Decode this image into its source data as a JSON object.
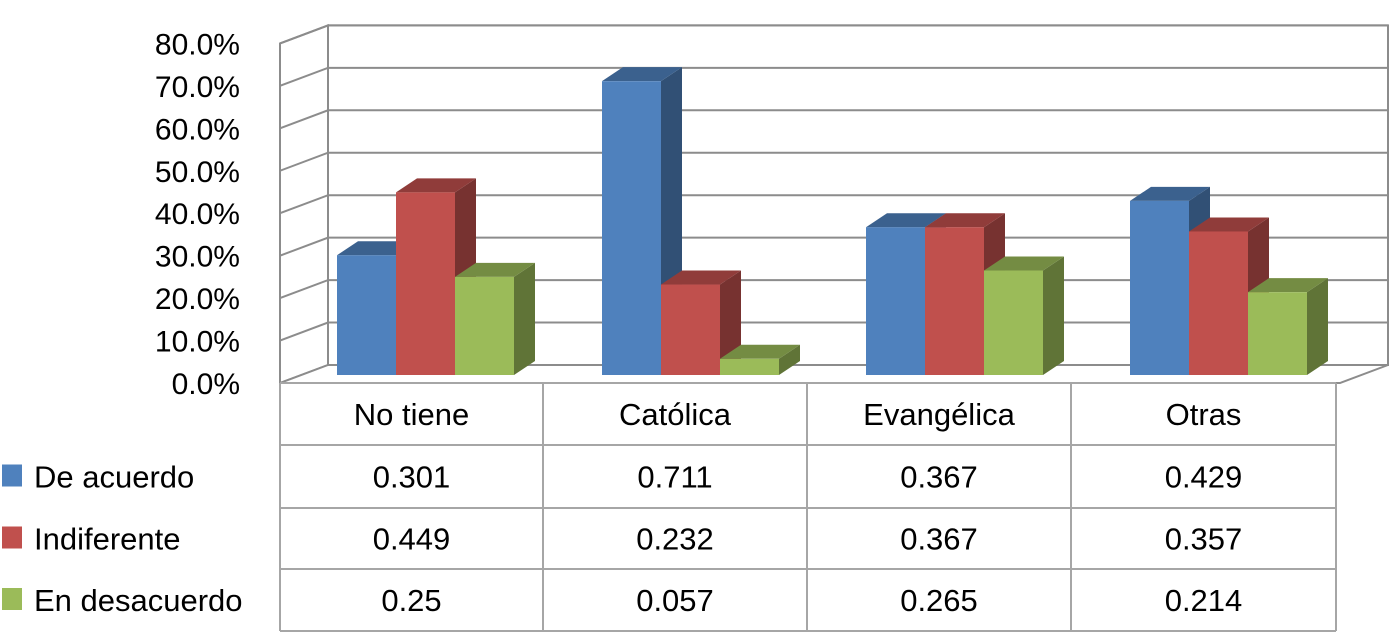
{
  "chart_data": {
    "type": "bar",
    "categories": [
      "No tiene",
      "Católica",
      "Evangélica",
      "Otras"
    ],
    "series": [
      {
        "name": "De acuerdo",
        "values": [
          0.301,
          0.711,
          0.367,
          0.429
        ],
        "value_labels": [
          "0.301",
          "0.711",
          "0.367",
          "0.429"
        ],
        "color": "#4F81BD"
      },
      {
        "name": "Indiferente",
        "values": [
          0.449,
          0.232,
          0.367,
          0.357
        ],
        "value_labels": [
          "0.449",
          "0.232",
          "0.367",
          "0.357"
        ],
        "color": "#C0504D"
      },
      {
        "name": "En desacuerdo",
        "values": [
          0.25,
          0.057,
          0.265,
          0.214
        ],
        "value_labels": [
          "0.25",
          "0.057",
          "0.265",
          "0.214"
        ],
        "color": "#9BBB59"
      }
    ],
    "yticks": [
      "0.0%",
      "10.0%",
      "20.0%",
      "30.0%",
      "40.0%",
      "50.0%",
      "60.0%",
      "70.0%",
      "80.0%"
    ],
    "ylim": [
      0,
      0.8
    ],
    "grid": true,
    "data_table": true,
    "three_d": true
  }
}
